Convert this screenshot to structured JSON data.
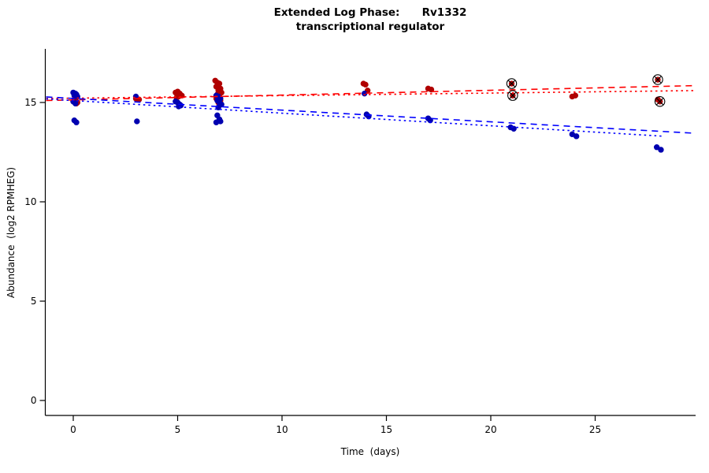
{
  "chart_data": {
    "type": "scatter",
    "title": "Extended Log Phase:      Rv1332",
    "subtitle": "transcriptional regulator",
    "xlabel": "Time  (days)",
    "ylabel": "Abundance  (log2 RPMHEG)",
    "xlim": [
      -1.3,
      29.8
    ],
    "ylim": [
      -0.75,
      17.6
    ],
    "xticks": [
      0,
      5,
      10,
      15,
      20,
      25
    ],
    "yticks": [
      0,
      5,
      10,
      15
    ],
    "grid": false,
    "legend": "none",
    "series": [
      {
        "name": "red-condition",
        "point_color": "#b00000",
        "points": [
          [
            0,
            15.05
          ],
          [
            0.1,
            15.15
          ],
          [
            0.15,
            14.95
          ],
          [
            0.05,
            15.1
          ],
          [
            0.2,
            15.0
          ],
          [
            3,
            15.2
          ],
          [
            3.15,
            15.15
          ],
          [
            4.9,
            15.5
          ],
          [
            5,
            15.55
          ],
          [
            5.1,
            15.45
          ],
          [
            5.05,
            15.3
          ],
          [
            5.2,
            15.35
          ],
          [
            4.95,
            15.25
          ],
          [
            6.8,
            16.1
          ],
          [
            6.9,
            16.0
          ],
          [
            7,
            15.95
          ],
          [
            6.85,
            15.8
          ],
          [
            7.05,
            15.7
          ],
          [
            6.95,
            15.6
          ],
          [
            7.1,
            15.5
          ],
          [
            6.9,
            15.4
          ],
          [
            7,
            15.3
          ],
          [
            6.85,
            15.2
          ],
          [
            7.05,
            15.1
          ],
          [
            6.95,
            15.0
          ],
          [
            13.9,
            15.95
          ],
          [
            14,
            15.9
          ],
          [
            14.1,
            15.6
          ],
          [
            17,
            15.7
          ],
          [
            17.15,
            15.65
          ],
          [
            21,
            15.95
          ],
          [
            21.05,
            15.35
          ],
          [
            23.9,
            15.3
          ],
          [
            24.05,
            15.35
          ],
          [
            28,
            16.15
          ],
          [
            28,
            15.15
          ],
          [
            28.1,
            15.05
          ]
        ]
      },
      {
        "name": "blue-condition",
        "point_color": "#0000b0",
        "points": [
          [
            0,
            15.5
          ],
          [
            0.1,
            15.45
          ],
          [
            0.05,
            15.35
          ],
          [
            0.15,
            15.4
          ],
          [
            0.2,
            15.3
          ],
          [
            0,
            15.05
          ],
          [
            0.1,
            14.95
          ],
          [
            0.05,
            14.1
          ],
          [
            0.15,
            14.0
          ],
          [
            3,
            15.3
          ],
          [
            3.05,
            14.05
          ],
          [
            4.9,
            15.05
          ],
          [
            5,
            15.0
          ],
          [
            5.1,
            14.9
          ],
          [
            5.05,
            14.8
          ],
          [
            5.15,
            14.85
          ],
          [
            6.85,
            15.35
          ],
          [
            6.95,
            15.3
          ],
          [
            7.05,
            15.2
          ],
          [
            6.9,
            15.1
          ],
          [
            7,
            15.0
          ],
          [
            7.1,
            14.9
          ],
          [
            6.95,
            14.75
          ],
          [
            6.9,
            14.35
          ],
          [
            7,
            14.15
          ],
          [
            7.05,
            14.05
          ],
          [
            6.85,
            14.0
          ],
          [
            13.95,
            15.45
          ],
          [
            14.05,
            14.4
          ],
          [
            14.15,
            14.3
          ],
          [
            17,
            14.2
          ],
          [
            17.1,
            14.1
          ],
          [
            20.95,
            13.75
          ],
          [
            21.1,
            13.68
          ],
          [
            23.9,
            13.4
          ],
          [
            24.1,
            13.3
          ],
          [
            27.95,
            12.75
          ],
          [
            28.15,
            12.62
          ]
        ]
      }
    ],
    "outlier_markers": {
      "symbol": "circle-x",
      "color": "#000000",
      "points": [
        [
          21,
          15.95
        ],
        [
          21.05,
          15.35
        ],
        [
          28,
          16.15
        ],
        [
          28.1,
          15.05
        ]
      ]
    },
    "trend_lines": [
      {
        "name": "red-dashed-fit",
        "color": "#ff0000",
        "style": "dashed",
        "x1": -1.3,
        "y1": 15.1,
        "x2": 29.8,
        "y2": 15.85
      },
      {
        "name": "red-dotted-fit",
        "color": "#ff0000",
        "style": "dotted",
        "x1": -1.3,
        "y1": 15.2,
        "x2": 29.8,
        "y2": 15.6
      },
      {
        "name": "blue-dashed-fit",
        "color": "#0000ff",
        "style": "dashed",
        "x1": -1.3,
        "y1": 15.28,
        "x2": 29.8,
        "y2": 13.45
      },
      {
        "name": "blue-dotted-fit",
        "color": "#0000ff",
        "style": "dotted",
        "x1": -1.3,
        "y1": 15.18,
        "x2": 28.3,
        "y2": 13.3
      }
    ],
    "axis_color": "#000000",
    "tick_label_color": "#000000"
  }
}
